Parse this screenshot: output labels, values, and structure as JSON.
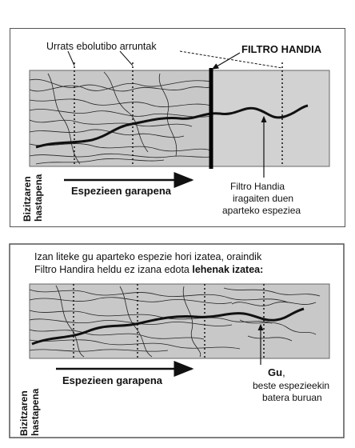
{
  "top": {
    "label_evolutionary_steps": "Urrats ebolutibo arruntak",
    "label_great_filter": "FILTRO HANDIA",
    "label_origin_of_life": [
      "Bizitzaren",
      "hastapena"
    ],
    "label_species_development": "Espezieen garapena",
    "label_rare_species": [
      "Filtro Handia",
      "iragaiten duen",
      "aparteko espeziea"
    ]
  },
  "bottom": {
    "caption_line1": "Izan liteke gu aparteko espezie hori izatea, oraindik",
    "caption_line2_normal": "Filtro Handira heldu ez izana edota ",
    "caption_line2_bold": "lehenak izatea:",
    "label_origin_of_life": [
      "Bizitzaren",
      "hastapena"
    ],
    "label_species_development": "Espezieen garapena",
    "label_us_bold": "Gu",
    "label_us_comma": ",",
    "label_us_rest": [
      "beste espezieekin",
      "batera buruan"
    ]
  },
  "colors": {
    "band_fill": "#c8c8c8",
    "band_after_filter": "#d2d2d2",
    "lines": "#111111"
  }
}
